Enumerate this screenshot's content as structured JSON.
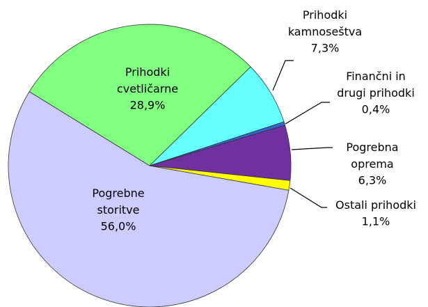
{
  "chart_data": {
    "type": "pie",
    "categories": [
      "Pogrebne\nstoritve",
      "Prihodki\ncvetličarne",
      "Prihodki\nkamnoseštva",
      "Finančni in\ndrugi prihodki",
      "Pogrebna\noprema",
      "Ostali prihodki"
    ],
    "values": [
      56.0,
      28.9,
      7.3,
      0.4,
      6.3,
      1.1
    ],
    "value_labels": [
      "56,0%",
      "28,9%",
      "7,3%",
      "0,4%",
      "6,3%",
      "1,1%"
    ],
    "colors": [
      "#ccccff",
      "#80ff80",
      "#66ffff",
      "#3366cc",
      "#7030a0",
      "#ffff00"
    ]
  }
}
